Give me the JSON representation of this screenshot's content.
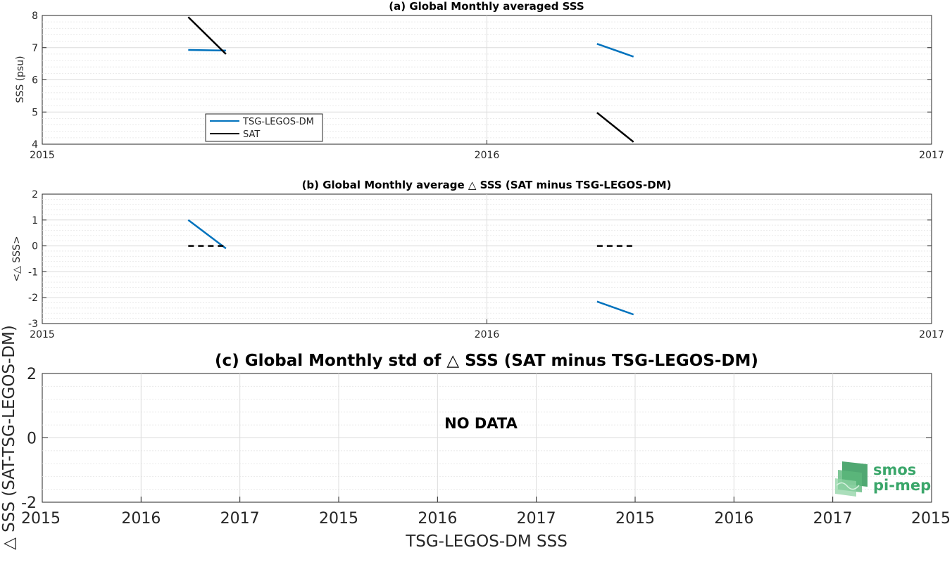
{
  "chart_data": [
    {
      "type": "line",
      "title": "(a) Global Monthly averaged SSS",
      "xlabel": "",
      "ylabel": "SSS (psu)",
      "ylim": [
        4,
        8
      ],
      "yticks": [
        "4",
        "5",
        "6",
        "7",
        "8"
      ],
      "xticks": [
        "2015",
        "2016",
        "2017"
      ],
      "grid": true,
      "legend": {
        "placement": "lower-left",
        "entries": [
          "TSG-LEGOS-DM",
          "SAT"
        ]
      },
      "series": [
        {
          "name": "TSG-LEGOS-DM",
          "color": "#0072bd",
          "style": "solid",
          "segments": [
            [
              [
                "2015-05-01",
                6.93
              ],
              [
                "2015-06-01",
                6.91
              ]
            ],
            [
              [
                "2016-04-01",
                7.12
              ],
              [
                "2016-05-01",
                6.72
              ]
            ]
          ]
        },
        {
          "name": "SAT",
          "color": "#000000",
          "style": "solid",
          "segments": [
            [
              [
                "2015-05-01",
                7.95
              ],
              [
                "2015-06-01",
                6.8
              ]
            ],
            [
              [
                "2016-04-01",
                4.98
              ],
              [
                "2016-05-01",
                4.07
              ]
            ]
          ]
        }
      ]
    },
    {
      "type": "line",
      "title": "(b) Global Monthly average △ SSS (SAT minus TSG-LEGOS-DM)",
      "xlabel": "",
      "ylabel": "<△ SSS>",
      "ylim": [
        -3,
        2
      ],
      "yticks": [
        "-3",
        "-2",
        "-1",
        "0",
        "1",
        "2"
      ],
      "xticks": [
        "2015",
        "2016",
        "2017"
      ],
      "grid": true,
      "series": [
        {
          "color": "#0072bd",
          "style": "solid",
          "segments": [
            [
              [
                "2015-05-01",
                1.0
              ],
              [
                "2015-06-01",
                -0.1
              ]
            ],
            [
              [
                "2016-04-01",
                -2.15
              ],
              [
                "2016-05-01",
                -2.65
              ]
            ]
          ]
        },
        {
          "color": "#000000",
          "style": "dashed",
          "segments": [
            [
              [
                "2015-05-01",
                0
              ],
              [
                "2015-06-01",
                0
              ]
            ],
            [
              [
                "2016-04-01",
                0
              ],
              [
                "2016-05-01",
                0
              ]
            ]
          ]
        }
      ]
    },
    {
      "type": "line",
      "title": "(c) Global Monthly std of △ SSS (SAT minus TSG-LEGOS-DM)",
      "xlabel": "TSG-LEGOS-DM SSS",
      "ylabel": "△ SSS (SAT-TSG-LEGOS-DM)",
      "ylim": [
        -2,
        2
      ],
      "yticks": [
        "-2",
        "0",
        "2"
      ],
      "xticks": [
        "2015",
        "2016",
        "2017",
        "2015",
        "2016",
        "2017",
        "2015",
        "2016",
        "2017",
        "2015"
      ],
      "grid": true,
      "annotation": "NO DATA",
      "series": []
    }
  ],
  "logo": {
    "line1": "smos",
    "line2": "pi-mep",
    "color": "#3aa66a"
  }
}
